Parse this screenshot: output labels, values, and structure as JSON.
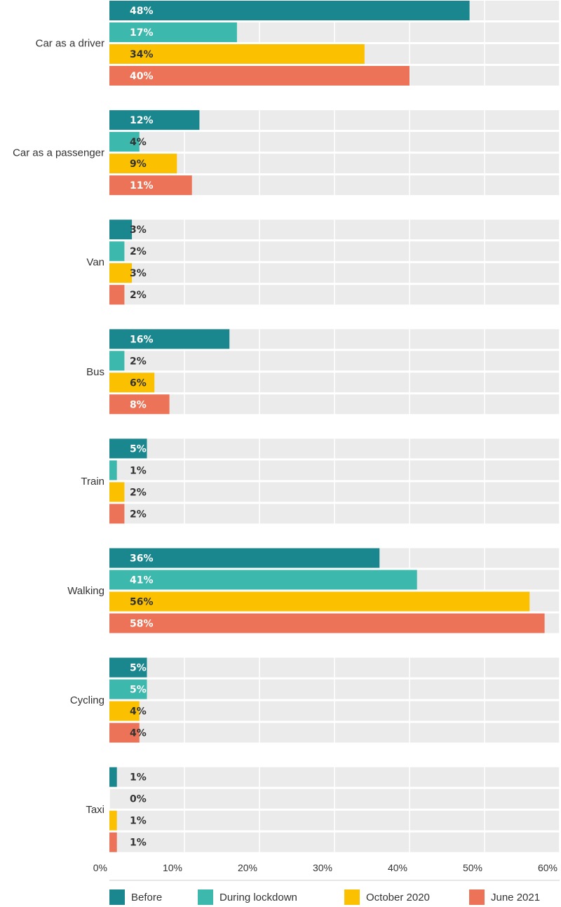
{
  "chart_data": {
    "type": "bar",
    "orientation": "horizontal",
    "categories": [
      "Car as a driver",
      "Car as a passenger",
      "Van",
      "Bus",
      "Train",
      "Walking",
      "Cycling",
      "Taxi"
    ],
    "series": [
      {
        "name": "Before",
        "color": "#1a878f",
        "values": [
          48,
          12,
          3,
          16,
          5,
          36,
          5,
          1
        ]
      },
      {
        "name": "During lockdown",
        "color": "#3cb8ad",
        "values": [
          17,
          4,
          2,
          2,
          1,
          41,
          5,
          0
        ]
      },
      {
        "name": "October 2020",
        "color": "#fbc100",
        "values": [
          34,
          9,
          3,
          6,
          2,
          56,
          4,
          1
        ]
      },
      {
        "name": "June 2021",
        "color": "#ec7357",
        "values": [
          40,
          11,
          2,
          8,
          2,
          58,
          4,
          1
        ]
      }
    ],
    "data_labels": [
      [
        "48%",
        "12%",
        "3%",
        "16%",
        "5%",
        "36%",
        "5%",
        "1%"
      ],
      [
        "17%",
        "4%",
        "2%",
        "2%",
        "1%",
        "41%",
        "5%",
        "0%"
      ],
      [
        "34%",
        "9%",
        "3%",
        "6%",
        "2%",
        "56%",
        "4%",
        "1%"
      ],
      [
        "40%",
        "11%",
        "2%",
        "8%",
        "2%",
        "58%",
        "4%",
        "1%"
      ]
    ],
    "xlim": [
      0,
      60
    ],
    "xticks": [
      "0%",
      "10%",
      "20%",
      "30%",
      "40%",
      "50%",
      "60%"
    ],
    "grid": true,
    "legend_position": "bottom",
    "background_color": "#ebebeb"
  }
}
